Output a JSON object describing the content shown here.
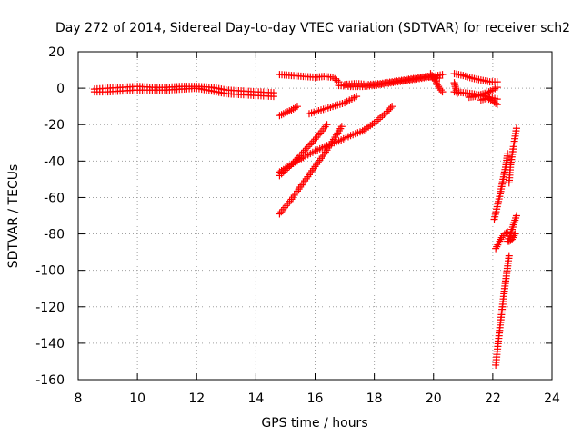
{
  "chart_data": {
    "type": "scatter",
    "title": "Day 272 of 2014, Sidereal Day-to-day VTEC variation (SDTVAR) for receiver sch2",
    "xlabel": "GPS time / hours",
    "ylabel": "SDTVAR / TECUs",
    "xlim": [
      8,
      24
    ],
    "ylim": [
      -160,
      20
    ],
    "xticks": [
      8,
      10,
      12,
      14,
      16,
      18,
      20,
      22,
      24
    ],
    "yticks": [
      -160,
      -140,
      -120,
      -100,
      -80,
      -60,
      -40,
      -20,
      0,
      20
    ],
    "grid": true,
    "marker": "+",
    "series": [
      {
        "name": "SDTVAR",
        "color": "#ff0000",
        "segments": [
          {
            "x": [
              8.55,
              9.0,
              9.5,
              10.0,
              10.5,
              11.0,
              11.5,
              12.0,
              12.5,
              13.0,
              13.5,
              14.0,
              14.6
            ],
            "y": [
              -0.5,
              0.0,
              0.5,
              1.0,
              0.5,
              0.5,
              1.0,
              1.0,
              0.5,
              -1.0,
              -1.5,
              -2.0,
              -2.5
            ]
          },
          {
            "x": [
              8.55,
              9.0,
              9.5,
              10.0,
              10.5,
              11.0,
              11.5,
              12.0,
              12.5,
              13.0,
              13.5,
              14.0,
              14.6
            ],
            "y": [
              -2.0,
              -2.0,
              -1.5,
              -1.0,
              -1.0,
              -1.0,
              -0.5,
              0.0,
              -1.5,
              -3.0,
              -3.5,
              -4.0,
              -4.5
            ]
          },
          {
            "x": [
              14.8,
              15.2,
              15.6,
              16.0,
              16.3,
              16.6,
              16.8
            ],
            "y": [
              7.5,
              7.0,
              6.5,
              6.0,
              6.5,
              6.0,
              3.5
            ]
          },
          {
            "x": [
              16.8,
              17.2,
              17.6,
              18.0,
              18.4,
              18.8,
              19.2,
              19.6,
              20.0,
              20.3
            ],
            "y": [
              1.5,
              1.0,
              1.0,
              1.5,
              2.5,
              3.5,
              4.5,
              5.5,
              6.5,
              7.5
            ]
          },
          {
            "x": [
              17.0,
              17.4,
              17.8,
              18.2,
              18.6,
              19.0,
              19.4,
              19.8,
              20.2
            ],
            "y": [
              2.0,
              2.5,
              2.0,
              2.5,
              3.5,
              4.5,
              5.5,
              6.5,
              5.5
            ]
          },
          {
            "x": [
              19.9,
              20.0,
              20.1,
              20.2,
              20.3
            ],
            "y": [
              8.0,
              6.0,
              3.0,
              0.0,
              -2.0
            ]
          },
          {
            "x": [
              14.8,
              15.0,
              15.2,
              15.4
            ],
            "y": [
              -15.0,
              -13.5,
              -12.0,
              -10.0
            ]
          },
          {
            "x": [
              15.8,
              16.2,
              16.6,
              17.0,
              17.4
            ],
            "y": [
              -14.0,
              -12.0,
              -10.0,
              -8.0,
              -4.5
            ]
          },
          {
            "x": [
              14.8,
              15.2,
              15.6,
              16.0,
              16.4
            ],
            "y": [
              -48.0,
              -42.0,
              -35.0,
              -28.0,
              -20.0
            ]
          },
          {
            "x": [
              14.8,
              15.2,
              15.6,
              16.0,
              16.4,
              16.8,
              17.2,
              17.6,
              18.0,
              18.4,
              18.6
            ],
            "y": [
              -46.0,
              -42.0,
              -38.0,
              -34.5,
              -31.5,
              -29.0,
              -26.0,
              -23.5,
              -19.0,
              -13.5,
              -10.0
            ]
          },
          {
            "x": [
              14.8,
              15.2,
              15.6,
              16.0,
              16.4,
              16.9
            ],
            "y": [
              -69.0,
              -61.0,
              -52.0,
              -43.0,
              -34.0,
              -21.0
            ]
          },
          {
            "x": [
              20.7,
              21.0,
              21.3,
              21.6,
              21.9,
              22.15
            ],
            "y": [
              8.0,
              7.0,
              5.5,
              4.5,
              3.5,
              3.5
            ]
          },
          {
            "x": [
              20.7,
              21.0,
              21.3,
              21.6,
              21.9,
              22.15
            ],
            "y": [
              -2.0,
              -2.5,
              -3.0,
              -4.0,
              -5.0,
              -6.0
            ]
          },
          {
            "x": [
              21.2,
              21.4,
              21.6,
              21.8,
              22.0,
              22.15
            ],
            "y": [
              -5.0,
              -4.5,
              -3.5,
              -2.5,
              -1.0,
              0.5
            ]
          },
          {
            "x": [
              21.6,
              21.8,
              22.0,
              22.15
            ],
            "y": [
              -6.5,
              -5.5,
              -7.0,
              -9.0
            ]
          },
          {
            "x": [
              20.7,
              20.75,
              20.8
            ],
            "y": [
              3.0,
              0.0,
              -3.0
            ]
          },
          {
            "x": [
              22.05,
              22.15,
              22.25,
              22.35,
              22.45,
              22.5
            ],
            "y": [
              -72.0,
              -65.0,
              -58.0,
              -50.0,
              -42.0,
              -36.0
            ]
          },
          {
            "x": [
              22.55,
              22.6,
              22.7,
              22.8
            ],
            "y": [
              -52.0,
              -42.0,
              -32.0,
              -22.0
            ]
          },
          {
            "x": [
              22.1,
              22.25,
              22.4,
              22.55
            ],
            "y": [
              -152.0,
              -130.0,
              -110.0,
              -92.0
            ]
          },
          {
            "x": [
              22.1,
              22.2,
              22.3,
              22.4,
              22.5
            ],
            "y": [
              -88.0,
              -85.0,
              -82.0,
              -80.0,
              -79.0
            ]
          },
          {
            "x": [
              22.5,
              22.6,
              22.7,
              22.8
            ],
            "y": [
              -84.0,
              -80.0,
              -75.0,
              -70.0
            ]
          },
          {
            "x": [
              22.55,
              22.65,
              22.75
            ],
            "y": [
              -84.0,
              -83.0,
              -80.0
            ]
          }
        ]
      }
    ]
  }
}
